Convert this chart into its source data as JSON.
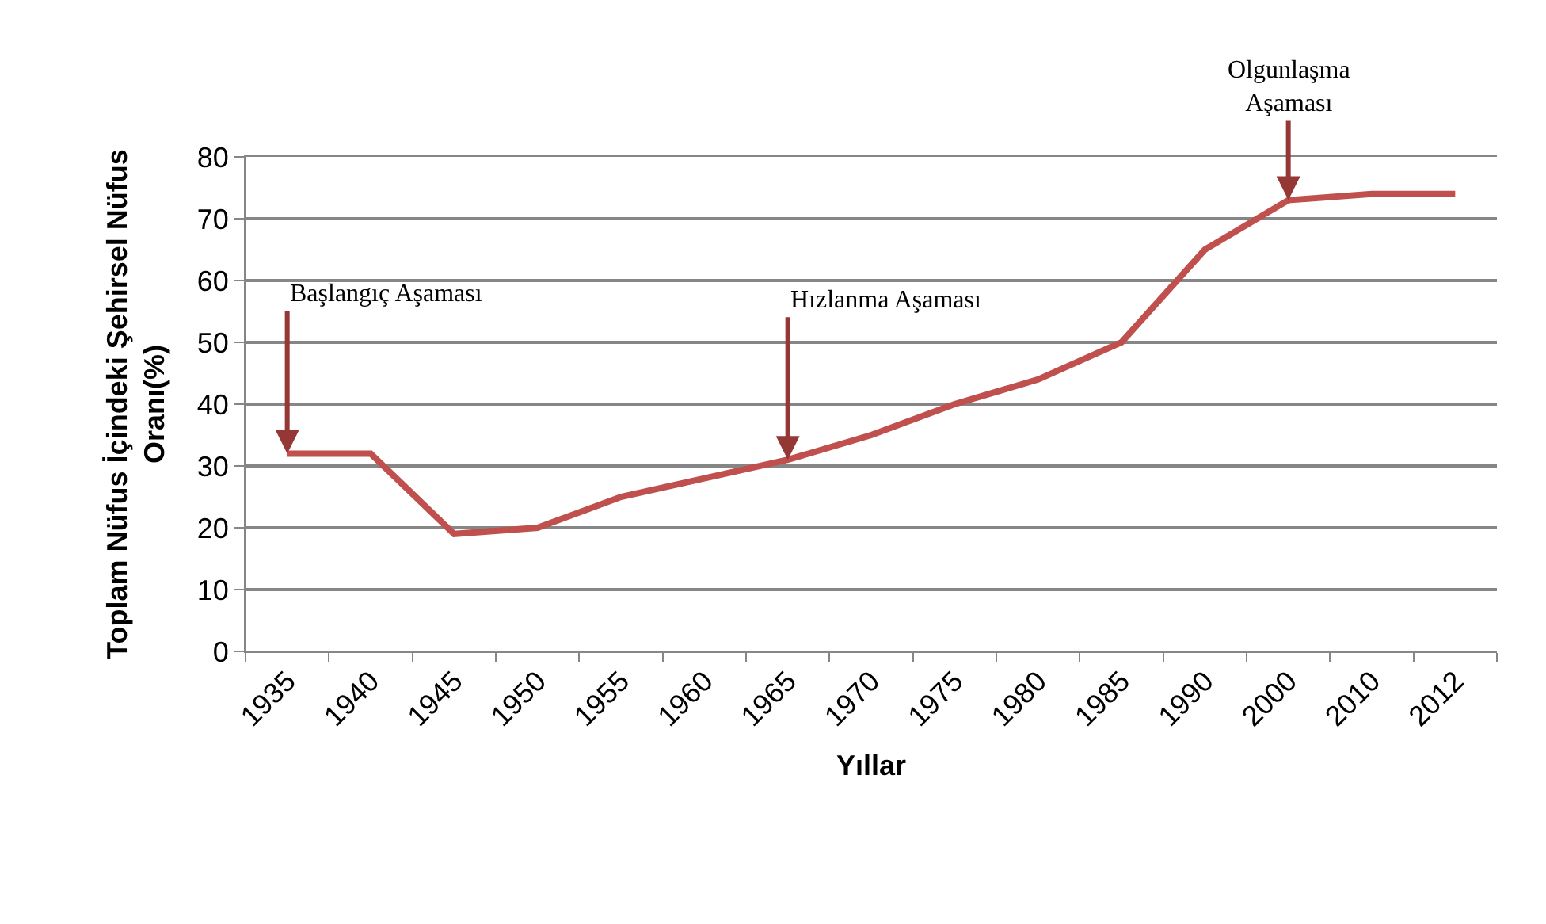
{
  "chart_data": {
    "type": "line",
    "xlabel": "Yıllar",
    "ylabel": "Toplam Nüfus İçindeki Şehirsel Nüfus\nOranı(%)",
    "categories": [
      "1935",
      "1940",
      "1945",
      "1950",
      "1955",
      "1960",
      "1965",
      "1970",
      "1975",
      "1980",
      "1985",
      "1990",
      "2000",
      "2010",
      "2012"
    ],
    "series": [
      {
        "color": "#c0504d",
        "values": [
          32,
          32,
          19,
          20,
          25,
          28,
          31,
          35,
          40,
          44,
          50,
          65,
          73,
          74,
          74
        ]
      }
    ],
    "ylim": [
      0,
      80
    ],
    "yticks": [
      0,
      10,
      20,
      30,
      40,
      50,
      60,
      70,
      80
    ],
    "grid": "y",
    "marker": "none",
    "line_style": "solid",
    "annotations": [
      {
        "text": "Başlangıç Aşaması",
        "x": "1935",
        "y": 32
      },
      {
        "text": "Hızlanma Aşaması",
        "x": "1965",
        "y": 31
      },
      {
        "text": "Olgunlaşma\nAşaması",
        "x": "2000",
        "y": 73
      }
    ]
  }
}
